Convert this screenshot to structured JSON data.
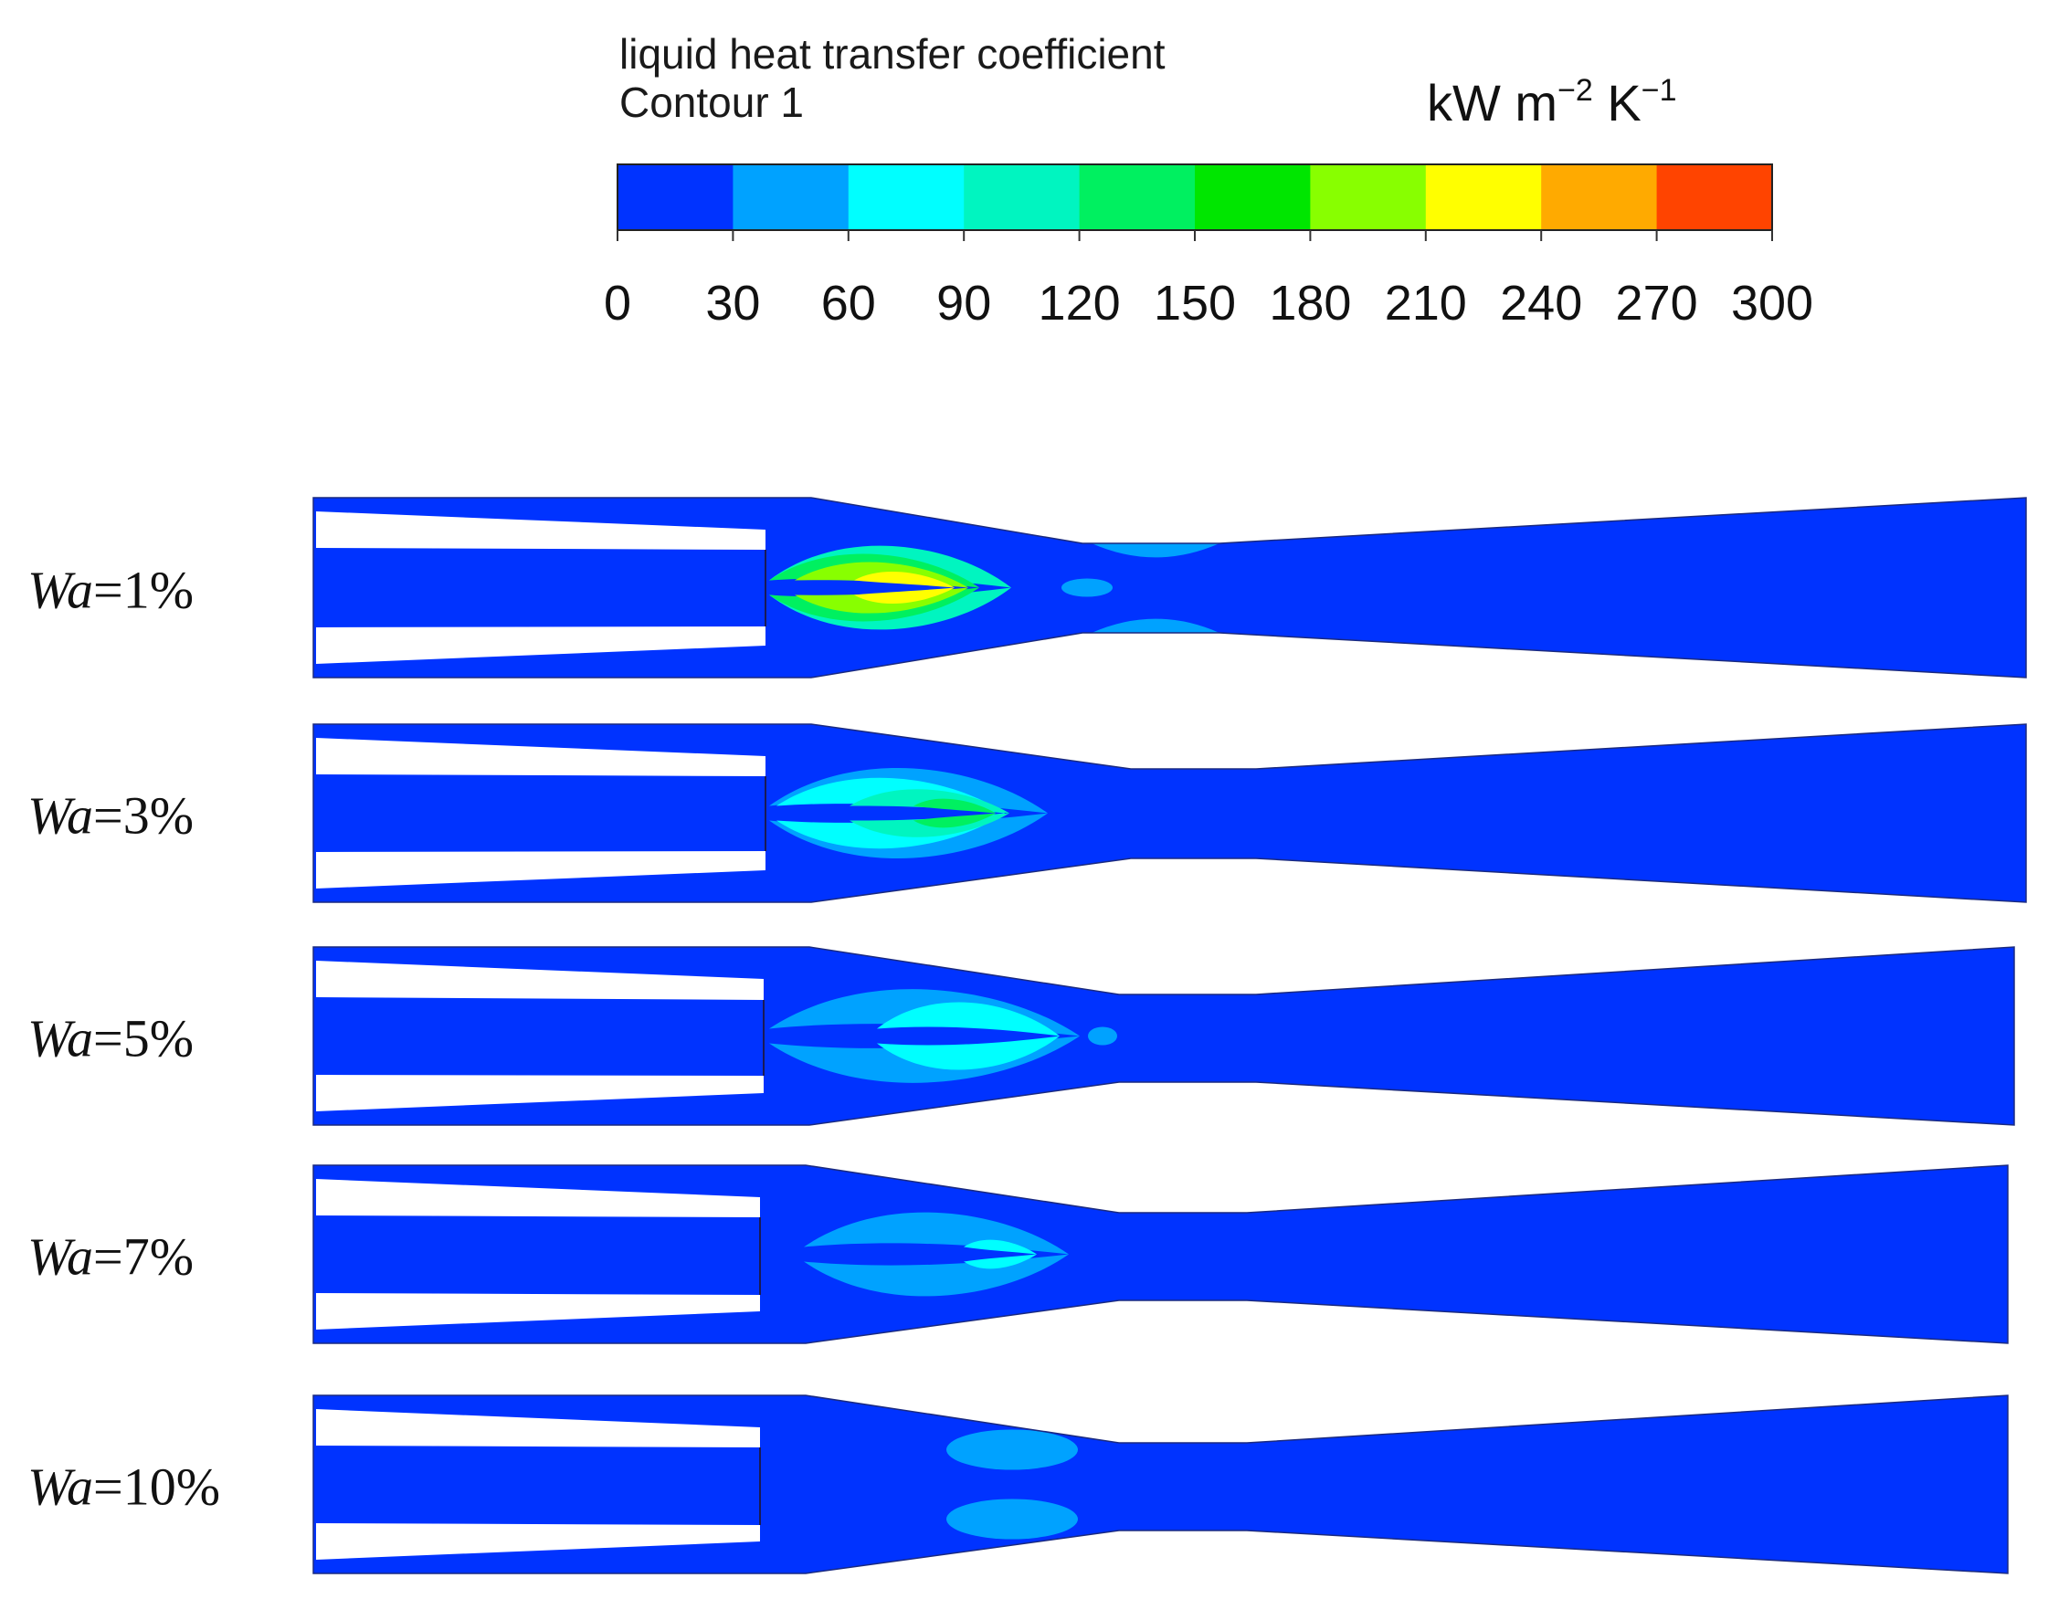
{
  "legend": {
    "title_line1": "liquid heat transfer coefficient",
    "title_line2": "Contour 1",
    "unit_main": "kW m",
    "unit_exp1": "−2",
    "unit_mid": " K",
    "unit_exp2": "−1",
    "tick_values": [
      "0",
      "30",
      "60",
      "90",
      "120",
      "150",
      "180",
      "210",
      "240",
      "270",
      "300"
    ],
    "colors": [
      "#0033ff",
      "#00a2ff",
      "#00ffff",
      "#00f5c0",
      "#00f060",
      "#00e600",
      "#88ff00",
      "#ffff00",
      "#ffaa00",
      "#ff4400"
    ]
  },
  "panels": [
    {
      "label_var": "Wa",
      "label_val": "=1%"
    },
    {
      "label_var": "Wa",
      "label_val": "=3%"
    },
    {
      "label_var": "Wa",
      "label_val": "=5%"
    },
    {
      "label_var": "Wa",
      "label_val": "=7%"
    },
    {
      "label_var": "Wa",
      "label_val": "=10%"
    }
  ]
}
